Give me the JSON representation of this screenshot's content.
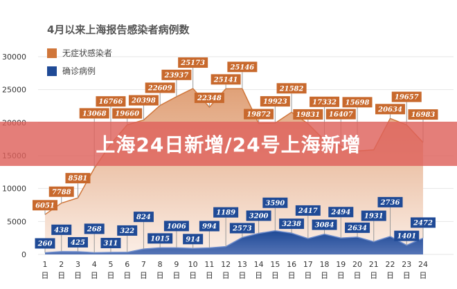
{
  "banner": {
    "text": "上海24日新增/24号上海新增"
  },
  "chart_data": {
    "type": "area",
    "title": "4月以来上海报告感染者病例数",
    "xlabel": "",
    "ylabel": "",
    "ylim": [
      0,
      30000
    ],
    "yticks": [
      "0",
      "5000",
      "10000",
      "15000",
      "20000",
      "25000",
      "30000"
    ],
    "ytick_values": [
      0,
      5000,
      10000,
      15000,
      20000,
      25000,
      30000
    ],
    "categories": [
      "1",
      "2",
      "3",
      "4",
      "5",
      "6",
      "7",
      "8",
      "9",
      "10",
      "11",
      "12",
      "13",
      "14",
      "15",
      "16",
      "17",
      "18",
      "19",
      "20",
      "21",
      "22",
      "23",
      "24"
    ],
    "category_suffix": "日",
    "grid": true,
    "legend_position": "top-left",
    "series": [
      {
        "name": "无症状感染者",
        "color": "#d0763a",
        "values": [
          6051,
          7788,
          8581,
          13068,
          16766,
          19660,
          20398,
          22609,
          23937,
          25173,
          22348,
          25141,
          25146,
          19872,
          19923,
          21582,
          19831,
          17332,
          16407,
          15698,
          15861,
          20634,
          19657,
          16983
        ],
        "labels": [
          "6051",
          "7788",
          "8581",
          "13068",
          "16766",
          "19660",
          "20398",
          "22609",
          "23937",
          "25173",
          "22348",
          "25141",
          "25146",
          "19872",
          "19923",
          "21582",
          "19831",
          "17332",
          "16407",
          "15698",
          "",
          "20634",
          "19657",
          "16983"
        ]
      },
      {
        "name": "确诊病例",
        "color": "#1f4a96",
        "values": [
          260,
          438,
          425,
          268,
          311,
          322,
          824,
          1015,
          1006,
          914,
          994,
          1189,
          2573,
          3200,
          3590,
          3238,
          2417,
          3084,
          2494,
          2634,
          1931,
          2736,
          1401,
          2472
        ],
        "labels": [
          "260",
          "438",
          "425",
          "268",
          "311",
          "322",
          "824",
          "1015",
          "1006",
          "914",
          "994",
          "1189",
          "2573",
          "3200",
          "3590",
          "3238",
          "2417",
          "3084",
          "2494",
          "2634",
          "1931",
          "2736",
          "1401",
          "2472"
        ]
      }
    ]
  }
}
